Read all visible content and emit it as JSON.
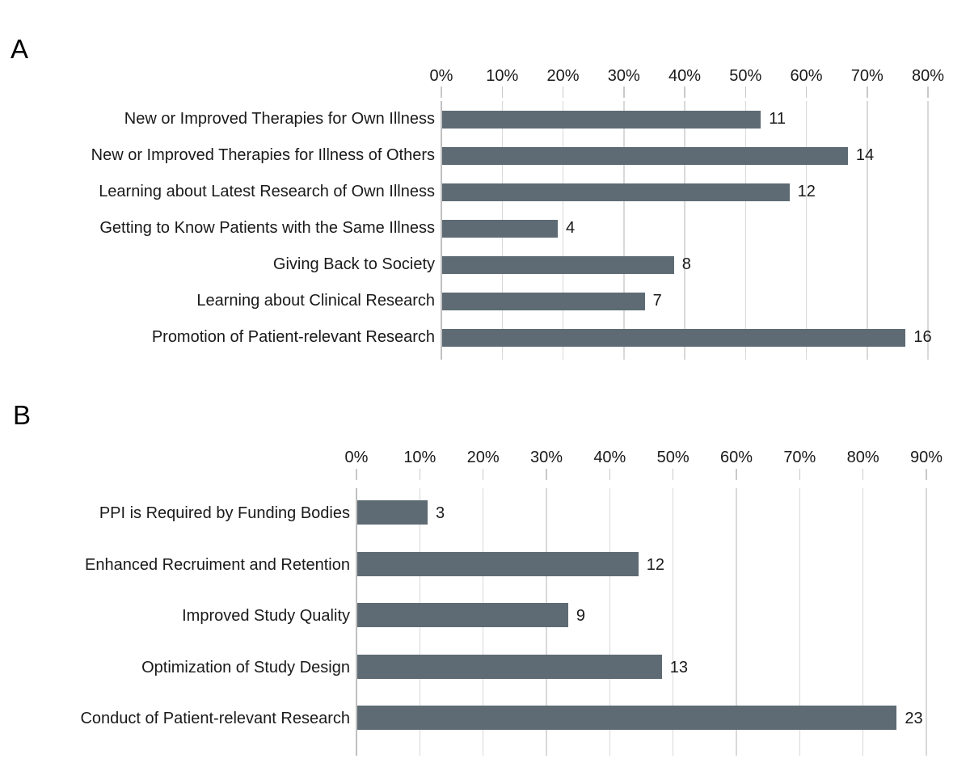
{
  "figure": {
    "background": "#ffffff"
  },
  "colors": {
    "bar": "#5e6b74",
    "gridline": "#d9d9d9",
    "axis_line": "#c0c0c0",
    "tick": "#c9c9c9",
    "text": "#1a1a1a"
  },
  "chart_data": [
    {
      "type": "bar",
      "orientation": "horizontal",
      "panel_label": "A",
      "title": "",
      "categories": [
        "New or Improved Therapies for Own Illness",
        "New or Improved Therapies for Illness of Others",
        "Learning about Latest Research of Own Illness",
        "Getting to Know Patients with the Same Illness",
        "Giving Back to Society",
        "Learning about Clinical Research",
        "Promotion of Patient-relevant Research"
      ],
      "values": [
        11,
        14,
        12,
        4,
        8,
        7,
        16
      ],
      "percentages": [
        52.4,
        66.7,
        57.1,
        19.0,
        38.1,
        33.3,
        76.2
      ],
      "data_labels": [
        "11",
        "14",
        "12",
        "4",
        "8",
        "7",
        "16"
      ],
      "x_axis": {
        "position": "top",
        "unit": "%",
        "min": 0,
        "max": 80,
        "tick_labels": [
          "0%",
          "10%",
          "20%",
          "30%",
          "40%",
          "50%",
          "60%",
          "70%",
          "80%"
        ]
      },
      "grid": true,
      "legend": false
    },
    {
      "type": "bar",
      "orientation": "horizontal",
      "panel_label": "B",
      "title": "",
      "categories": [
        "PPI is Required by Funding Bodies",
        "Enhanced Recruiment and Retention",
        "Improved Study Quality",
        "Optimization of Study Design",
        "Conduct of Patient-relevant Research"
      ],
      "values": [
        3,
        12,
        9,
        13,
        23
      ],
      "percentages": [
        11.1,
        44.4,
        33.3,
        48.1,
        85.2
      ],
      "data_labels": [
        "3",
        "12",
        "9",
        "13",
        "23"
      ],
      "x_axis": {
        "position": "top",
        "unit": "%",
        "min": 0,
        "max": 90,
        "tick_labels": [
          "0%",
          "10%",
          "20%",
          "30%",
          "40%",
          "50%",
          "60%",
          "70%",
          "80%",
          "90%"
        ]
      },
      "grid": true,
      "legend": false
    }
  ]
}
